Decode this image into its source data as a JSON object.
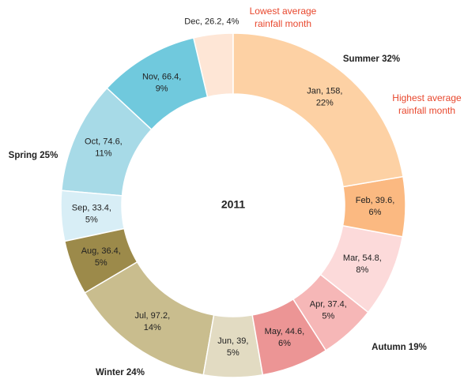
{
  "chart_data": {
    "type": "donut",
    "title": "2011",
    "categories": [
      "Jan",
      "Feb",
      "Mar",
      "Apr",
      "May",
      "Jun",
      "Jul",
      "Aug",
      "Sep",
      "Oct",
      "Nov",
      "Dec"
    ],
    "values": [
      158,
      39.6,
      54.8,
      37.4,
      44.6,
      39,
      97.2,
      36.4,
      33.4,
      74.6,
      66.4,
      26.2
    ],
    "value_labels": [
      [
        "Jan, 158,",
        "22%"
      ],
      [
        "Feb, 39.6,",
        "6%"
      ],
      [
        "Mar, 54.8,",
        "8%"
      ],
      [
        "Apr, 37.4,",
        "5%"
      ],
      [
        "May, 44.6,",
        "6%"
      ],
      [
        "Jun, 39,",
        "5%"
      ],
      [
        "Jul, 97.2,",
        "14%"
      ],
      [
        "Aug, 36.4,",
        "5%"
      ],
      [
        "Sep, 33.4,",
        "5%"
      ],
      [
        "Oct, 74.6,",
        "11%"
      ],
      [
        "Nov, 66.4,",
        "9%"
      ],
      [
        "Dec, 26.2, 4%"
      ]
    ],
    "colors": [
      "#fdd1a4",
      "#fbb981",
      "#fcdada",
      "#f6b7b7",
      "#ec9595",
      "#e2dbc2",
      "#c9bd8e",
      "#9c8a4a",
      "#d8eef6",
      "#a7dae7",
      "#70c9dd",
      "#fee6d6"
    ],
    "annotations": {
      "seasons": [
        "Summer 32%",
        "Autumn 19%",
        "Winter 24%",
        "Spring 25%"
      ],
      "lowest": [
        "Lowest average",
        "rainfall month"
      ],
      "highest": [
        "Highest average",
        "rainfall month"
      ]
    }
  }
}
